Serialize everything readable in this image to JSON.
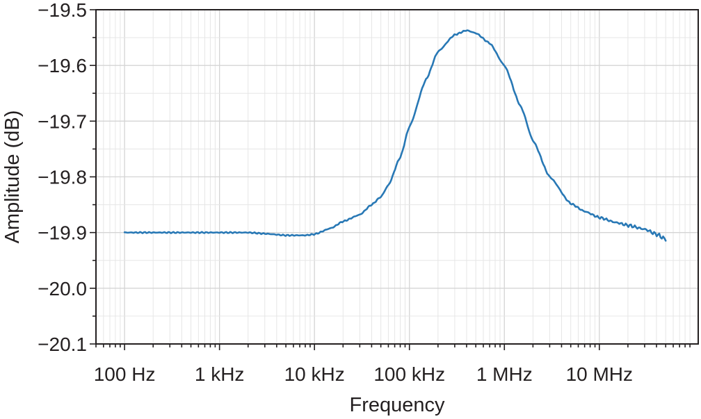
{
  "chart_data": {
    "type": "line",
    "title": "",
    "xlabel": "Frequency",
    "ylabel": "Amplitude (dB)",
    "x_scale": "log",
    "xlim": [
      50,
      110000000
    ],
    "ylim": [
      -20.1,
      -19.5
    ],
    "grid": true,
    "x_ticks": [
      {
        "value": 100,
        "label": "100 Hz"
      },
      {
        "value": 1000,
        "label": "1 kHz"
      },
      {
        "value": 10000,
        "label": "10 kHz"
      },
      {
        "value": 100000,
        "label": "100 kHz"
      },
      {
        "value": 1000000,
        "label": "1 MHz"
      },
      {
        "value": 10000000,
        "label": "10 MHz"
      }
    ],
    "y_ticks": [
      {
        "value": -19.5,
        "label": "−19.5"
      },
      {
        "value": -19.6,
        "label": "−19.6"
      },
      {
        "value": -19.7,
        "label": "−19.7"
      },
      {
        "value": -19.8,
        "label": "−19.8"
      },
      {
        "value": -19.9,
        "label": "−19.9"
      },
      {
        "value": -20.0,
        "label": "−20.0"
      },
      {
        "value": -20.1,
        "label": "−20.1"
      }
    ],
    "series": [
      {
        "color": "#2878b5",
        "x": [
          100,
          200,
          500,
          1000,
          2000,
          3000,
          5000,
          8000,
          10000,
          15000,
          20000,
          30000,
          40000,
          50000,
          60000,
          80000,
          100000,
          150000,
          200000,
          300000,
          400000,
          500000,
          700000,
          1000000,
          1500000,
          2000000,
          3000000,
          5000000,
          7000000,
          10000000,
          15000000,
          20000000,
          30000000,
          40000000,
          50000000
        ],
        "values": [
          -19.9,
          -19.9,
          -19.9,
          -19.9,
          -19.9,
          -19.902,
          -19.905,
          -19.905,
          -19.903,
          -19.892,
          -19.88,
          -19.868,
          -19.85,
          -19.836,
          -19.815,
          -19.765,
          -19.71,
          -19.625,
          -19.575,
          -19.545,
          -19.537,
          -19.542,
          -19.56,
          -19.6,
          -19.675,
          -19.735,
          -19.8,
          -19.848,
          -19.862,
          -19.873,
          -19.882,
          -19.887,
          -19.894,
          -19.903,
          -19.912
        ]
      }
    ]
  }
}
